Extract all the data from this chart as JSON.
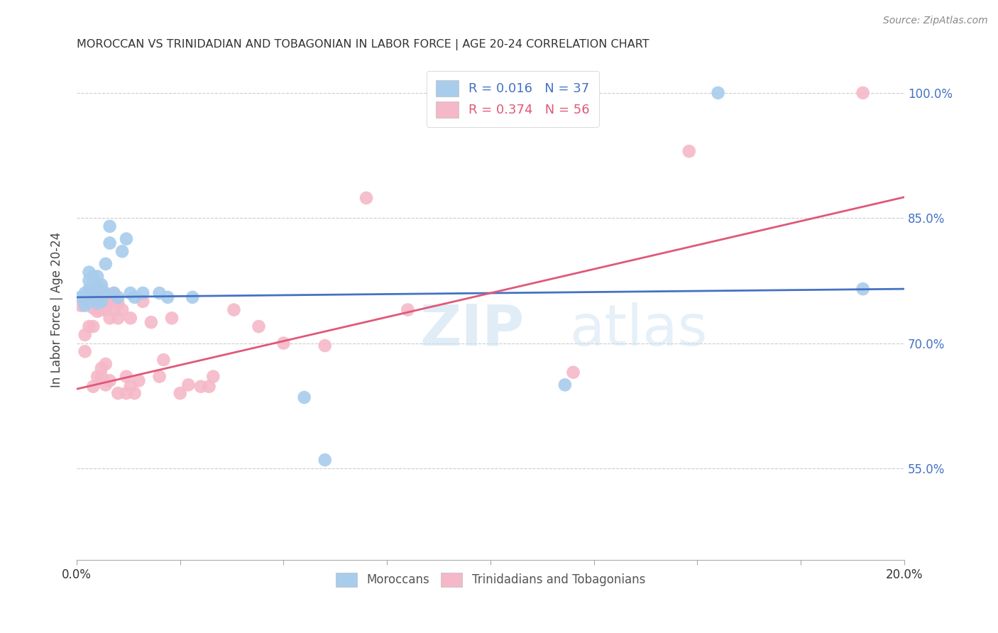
{
  "title": "MOROCCAN VS TRINIDADIAN AND TOBAGONIAN IN LABOR FORCE | AGE 20-24 CORRELATION CHART",
  "source": "Source: ZipAtlas.com",
  "ylabel": "In Labor Force | Age 20-24",
  "xlim": [
    0.0,
    0.2
  ],
  "ylim": [
    0.44,
    1.04
  ],
  "yticks": [
    0.55,
    0.7,
    0.85,
    1.0
  ],
  "ytick_labels": [
    "55.0%",
    "70.0%",
    "85.0%",
    "100.0%"
  ],
  "xticks": [
    0.0,
    0.025,
    0.05,
    0.075,
    0.1,
    0.125,
    0.15,
    0.175,
    0.2
  ],
  "xtick_labels": [
    "0.0%",
    "",
    "",
    "",
    "",
    "",
    "",
    "",
    "20.0%"
  ],
  "blue_color": "#a8ccec",
  "pink_color": "#f5b8c8",
  "blue_line_color": "#4472c4",
  "pink_line_color": "#e05878",
  "r_blue": 0.016,
  "n_blue": 37,
  "r_pink": 0.374,
  "n_pink": 56,
  "watermark_zip": "ZIP",
  "watermark_atlas": "atlas",
  "background_color": "#ffffff",
  "blue_scatter_x": [
    0.001,
    0.002,
    0.002,
    0.003,
    0.003,
    0.003,
    0.003,
    0.004,
    0.004,
    0.004,
    0.005,
    0.005,
    0.005,
    0.005,
    0.005,
    0.006,
    0.006,
    0.006,
    0.007,
    0.007,
    0.008,
    0.008,
    0.009,
    0.01,
    0.011,
    0.012,
    0.013,
    0.014,
    0.016,
    0.02,
    0.022,
    0.028,
    0.055,
    0.06,
    0.118,
    0.155,
    0.19
  ],
  "blue_scatter_y": [
    0.755,
    0.745,
    0.76,
    0.75,
    0.765,
    0.775,
    0.785,
    0.755,
    0.765,
    0.78,
    0.748,
    0.758,
    0.762,
    0.77,
    0.78,
    0.75,
    0.76,
    0.77,
    0.76,
    0.795,
    0.82,
    0.84,
    0.76,
    0.755,
    0.81,
    0.825,
    0.76,
    0.755,
    0.76,
    0.76,
    0.755,
    0.755,
    0.635,
    0.56,
    0.65,
    1.0,
    0.765
  ],
  "pink_scatter_x": [
    0.001,
    0.002,
    0.002,
    0.003,
    0.003,
    0.003,
    0.004,
    0.004,
    0.004,
    0.005,
    0.005,
    0.005,
    0.005,
    0.005,
    0.006,
    0.006,
    0.006,
    0.006,
    0.007,
    0.007,
    0.007,
    0.008,
    0.008,
    0.008,
    0.009,
    0.009,
    0.009,
    0.01,
    0.01,
    0.01,
    0.011,
    0.012,
    0.012,
    0.013,
    0.013,
    0.014,
    0.015,
    0.016,
    0.018,
    0.02,
    0.021,
    0.023,
    0.025,
    0.027,
    0.03,
    0.032,
    0.033,
    0.038,
    0.044,
    0.05,
    0.06,
    0.07,
    0.08,
    0.12,
    0.148,
    0.19
  ],
  "pink_scatter_y": [
    0.745,
    0.69,
    0.71,
    0.72,
    0.75,
    0.76,
    0.648,
    0.72,
    0.742,
    0.66,
    0.738,
    0.748,
    0.758,
    0.768,
    0.66,
    0.67,
    0.74,
    0.765,
    0.65,
    0.675,
    0.74,
    0.655,
    0.73,
    0.75,
    0.74,
    0.75,
    0.76,
    0.64,
    0.73,
    0.748,
    0.74,
    0.64,
    0.66,
    0.648,
    0.73,
    0.64,
    0.655,
    0.75,
    0.725,
    0.66,
    0.68,
    0.73,
    0.64,
    0.65,
    0.648,
    0.648,
    0.66,
    0.74,
    0.72,
    0.7,
    0.697,
    0.874,
    0.74,
    0.665,
    0.93,
    1.0
  ],
  "blue_trendline": [
    0.755,
    0.765
  ],
  "pink_trendline": [
    0.645,
    0.875
  ]
}
